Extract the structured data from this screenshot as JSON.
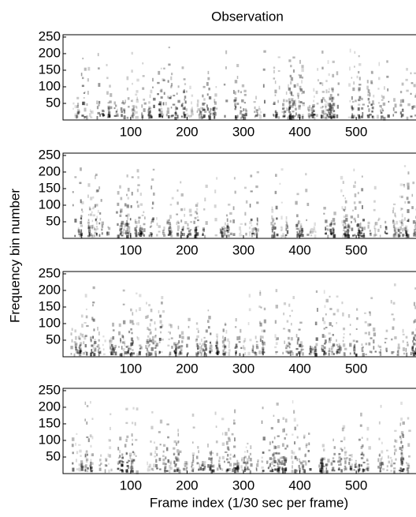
{
  "chart_data": [
    {
      "type": "spectrogram",
      "title": "Observation",
      "xlim": [
        -20,
        606
      ],
      "ylim": [
        0,
        257
      ],
      "xticks": [
        100,
        200,
        300,
        400,
        500
      ],
      "yticks": [
        50,
        100,
        150,
        200,
        250
      ]
    },
    {
      "type": "spectrogram",
      "ylabel": "Frequency bin number",
      "xlim": [
        -20,
        606
      ],
      "ylim": [
        0,
        257
      ],
      "xticks": [
        100,
        200,
        300,
        400,
        500
      ],
      "yticks": [
        50,
        100,
        150,
        200,
        250
      ]
    },
    {
      "type": "spectrogram",
      "xlim": [
        -20,
        606
      ],
      "ylim": [
        0,
        257
      ],
      "xticks": [
        100,
        200,
        300,
        400,
        500
      ],
      "yticks": [
        50,
        100,
        150,
        200,
        250
      ]
    },
    {
      "type": "spectrogram",
      "xlabel": "Frame index (1/30 sec per frame)",
      "xlim": [
        -20,
        606
      ],
      "ylim": [
        0,
        257
      ],
      "xticks": [
        100,
        200,
        300,
        400,
        500
      ],
      "yticks": [
        50,
        100,
        150,
        200,
        250
      ]
    }
  ]
}
